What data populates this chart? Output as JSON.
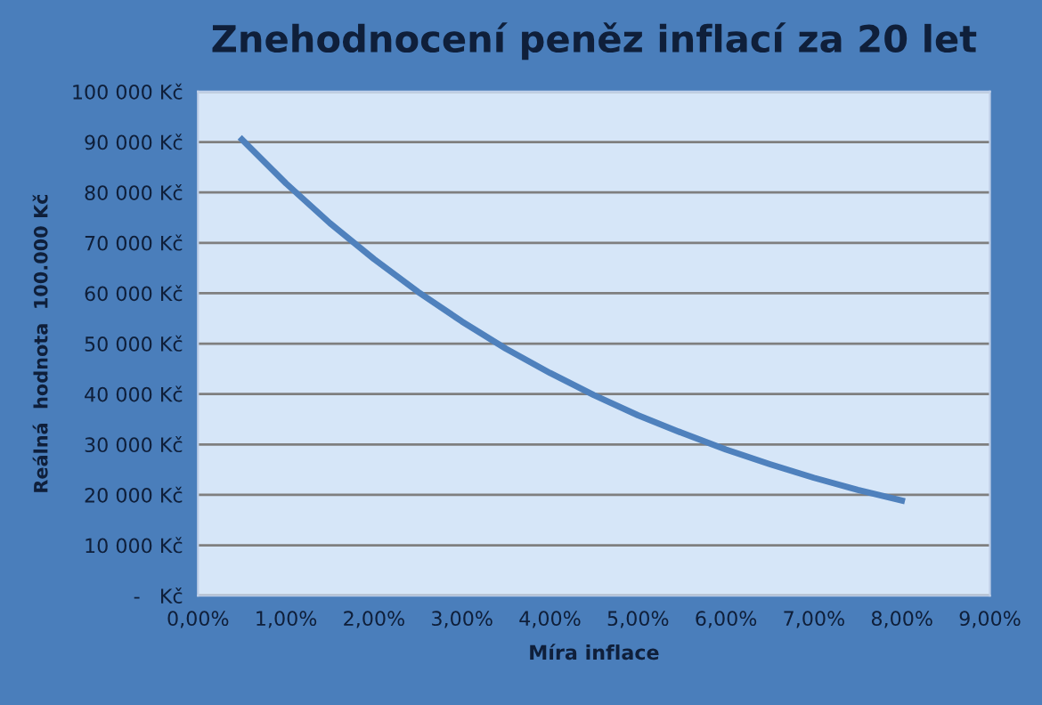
{
  "chart_data": {
    "type": "line",
    "title": "Znehodnocení peněz inflací za 20 let",
    "xlabel": "Míra inflace",
    "ylabel": "Reálná  hodnota  100.000 Kč",
    "x": [
      0.5,
      1.0,
      1.5,
      2.0,
      2.5,
      3.0,
      3.5,
      4.0,
      4.5,
      5.0,
      5.5,
      6.0,
      6.5,
      7.0,
      7.5,
      8.0
    ],
    "series": [
      {
        "color": "#4f81bd",
        "values": [
          90500,
          81800,
          73900,
          66800,
          60300,
          54400,
          49000,
          44200,
          39800,
          35800,
          32300,
          29000,
          26100,
          23400,
          21000,
          18900
        ]
      }
    ],
    "xlim": [
      0,
      9
    ],
    "xticks": [
      {
        "value": 0,
        "label": "0,00%"
      },
      {
        "value": 1,
        "label": "1,00%"
      },
      {
        "value": 2,
        "label": "2,00%"
      },
      {
        "value": 3,
        "label": "3,00%"
      },
      {
        "value": 4,
        "label": "4,00%"
      },
      {
        "value": 5,
        "label": "5,00%"
      },
      {
        "value": 6,
        "label": "6,00%"
      },
      {
        "value": 7,
        "label": "7,00%"
      },
      {
        "value": 8,
        "label": "8,00%"
      },
      {
        "value": 9,
        "label": "9,00%"
      }
    ],
    "ylim": [
      0,
      100000
    ],
    "yticks": [
      {
        "value": 0,
        "label": "-   Kč"
      },
      {
        "value": 10000,
        "label": "10 000 Kč"
      },
      {
        "value": 20000,
        "label": "20 000 Kč"
      },
      {
        "value": 30000,
        "label": "30 000 Kč"
      },
      {
        "value": 40000,
        "label": "40 000 Kč"
      },
      {
        "value": 50000,
        "label": "50 000 Kč"
      },
      {
        "value": 60000,
        "label": "60 000 Kč"
      },
      {
        "value": 70000,
        "label": "70 000 Kč"
      },
      {
        "value": 80000,
        "label": "80 000 Kč"
      },
      {
        "value": 90000,
        "label": "90 000 Kč"
      },
      {
        "value": 100000,
        "label": "100 000 Kč"
      }
    ],
    "grid": "y",
    "marker": "none",
    "line_style": "solid",
    "legend": false
  }
}
